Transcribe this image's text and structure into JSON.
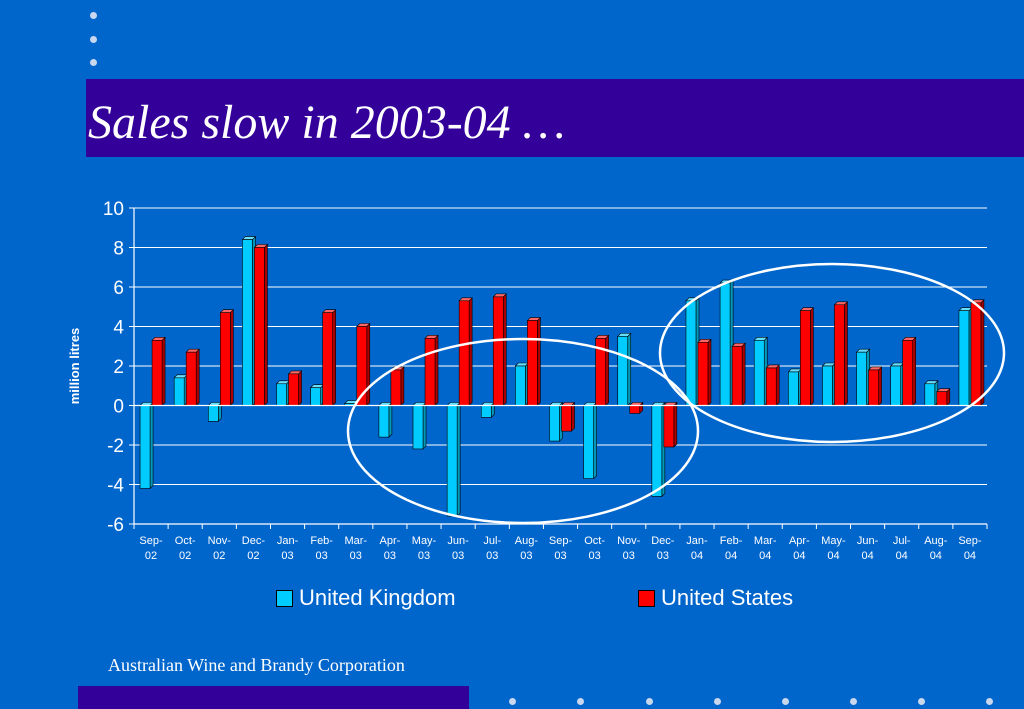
{
  "slide": {
    "title": "Sales slow in 2003-04 …",
    "footer": "Australian Wine and Brandy Corporation",
    "colors": {
      "background": "#0066CC",
      "band": "#330099",
      "uk": "#00CCFF",
      "us": "#FF0000",
      "text": "#FFFFFF"
    }
  },
  "chart_data": {
    "type": "bar",
    "ylabel": "million litres",
    "ylim": [
      -6,
      10
    ],
    "yticks": [
      "10",
      "8",
      "6",
      "4",
      "2",
      "0",
      "-2",
      "-4",
      "-6"
    ],
    "grid": true,
    "legend_position": "bottom",
    "categories": [
      [
        "Sep-",
        "02"
      ],
      [
        "Oct-",
        "02"
      ],
      [
        "Nov-",
        "02"
      ],
      [
        "Dec-",
        "02"
      ],
      [
        "Jan-",
        "03"
      ],
      [
        "Feb-",
        "03"
      ],
      [
        "Mar-",
        "03"
      ],
      [
        "Apr-",
        "03"
      ],
      [
        "May-",
        "03"
      ],
      [
        "Jun-",
        "03"
      ],
      [
        "Jul-",
        "03"
      ],
      [
        "Aug-",
        "03"
      ],
      [
        "Sep-",
        "03"
      ],
      [
        "Oct-",
        "03"
      ],
      [
        "Nov-",
        "03"
      ],
      [
        "Dec-",
        "03"
      ],
      [
        "Jan-",
        "04"
      ],
      [
        "Feb-",
        "04"
      ],
      [
        "Mar-",
        "04"
      ],
      [
        "Apr-",
        "04"
      ],
      [
        "May-",
        "04"
      ],
      [
        "Jun-",
        "04"
      ],
      [
        "Jul-",
        "04"
      ],
      [
        "Aug-",
        "04"
      ],
      [
        "Sep-",
        "04"
      ]
    ],
    "series": [
      {
        "name": "United Kingdom",
        "color": "#00CCFF",
        "values": [
          -4.2,
          1.4,
          -0.8,
          8.4,
          1.1,
          0.9,
          0.1,
          -1.6,
          -2.2,
          -5.6,
          -0.6,
          2.0,
          -1.8,
          -3.7,
          3.5,
          -4.6,
          5.3,
          6.2,
          3.3,
          1.7,
          2.0,
          2.7,
          2.0,
          1.1,
          4.8
        ]
      },
      {
        "name": "United States",
        "color": "#FF0000",
        "values": [
          3.3,
          2.7,
          4.7,
          8.0,
          1.6,
          4.7,
          4.0,
          1.8,
          3.4,
          5.3,
          5.5,
          4.3,
          -1.3,
          3.4,
          -0.4,
          -2.1,
          3.2,
          3.0,
          1.9,
          4.8,
          5.1,
          1.8,
          3.3,
          0.7,
          5.2
        ]
      }
    ]
  }
}
